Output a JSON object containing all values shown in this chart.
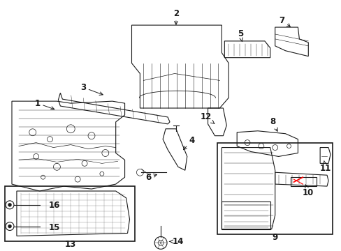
{
  "background_color": "#ffffff",
  "line_color": "#1a1a1a",
  "red_color": "#ff0000",
  "fig_width": 4.89,
  "fig_height": 3.6,
  "dpi": 100
}
